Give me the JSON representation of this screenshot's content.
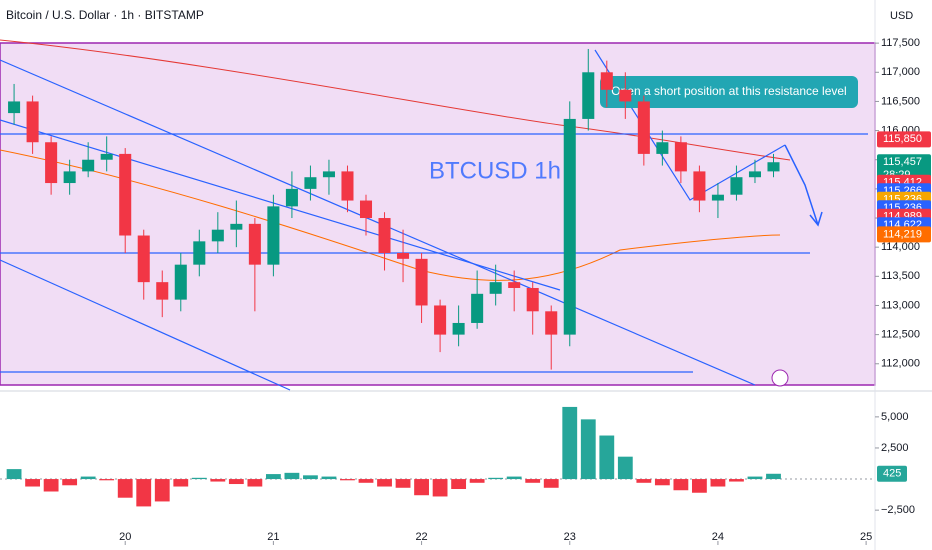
{
  "chart_data": [
    {
      "type": "candlestick",
      "title": "Bitcoin / U.S. Dollar · 1h · BITSTAMP",
      "watermark": "BTCUSD  1h",
      "annotation": "Open a short position at this resistance level",
      "currency": "USD",
      "countdown": "28:29",
      "x": [
        19.25,
        19.375,
        19.5,
        19.625,
        19.75,
        19.875,
        20,
        20.125,
        20.25,
        20.375,
        20.5,
        20.625,
        20.75,
        20.875,
        21,
        21.125,
        21.25,
        21.375,
        21.5,
        21.625,
        21.75,
        21.875,
        22,
        22.125,
        22.25,
        22.375,
        22.5,
        22.625,
        22.75,
        22.875,
        23,
        23.125,
        23.25,
        23.375,
        23.5,
        23.625,
        23.75,
        23.875,
        24,
        24.125,
        24.25,
        24.375
      ],
      "open": [
        116300,
        116500,
        115800,
        115100,
        115300,
        115500,
        115600,
        114200,
        113400,
        113100,
        113700,
        114100,
        114300,
        114400,
        113700,
        114700,
        115000,
        115200,
        115300,
        114800,
        114500,
        113900,
        113800,
        113000,
        112500,
        112700,
        113200,
        113400,
        113300,
        112900,
        112500,
        116200,
        117000,
        116700,
        116500,
        115600,
        115800,
        115300,
        114800,
        114900,
        115200,
        115300
      ],
      "high": [
        116800,
        116600,
        115900,
        115500,
        115800,
        115900,
        115700,
        114300,
        113600,
        113900,
        114300,
        114600,
        114800,
        114500,
        114900,
        115300,
        115400,
        115500,
        115400,
        114900,
        114600,
        114300,
        113900,
        113100,
        113000,
        113600,
        113700,
        113600,
        113400,
        113000,
        116500,
        117400,
        117200,
        117000,
        116600,
        116000,
        115900,
        115400,
        115100,
        115400,
        115500,
        115600
      ],
      "low": [
        116100,
        115600,
        114900,
        114900,
        115200,
        115300,
        113900,
        113100,
        112800,
        112900,
        113500,
        113900,
        114000,
        112900,
        113500,
        114500,
        114800,
        114900,
        114600,
        114200,
        113600,
        113400,
        112700,
        112200,
        112300,
        112600,
        113000,
        112900,
        112500,
        111900,
        112300,
        116000,
        116400,
        116200,
        115400,
        115400,
        115100,
        114600,
        114500,
        114800,
        115100,
        115200
      ],
      "close": [
        116500,
        115800,
        115100,
        115300,
        115500,
        115600,
        114200,
        113400,
        113100,
        113700,
        114100,
        114300,
        114400,
        113700,
        114700,
        115000,
        115200,
        115300,
        114800,
        114500,
        113900,
        113800,
        113000,
        112500,
        112700,
        113200,
        113400,
        113300,
        112900,
        112500,
        116200,
        117000,
        116700,
        116500,
        115600,
        115800,
        115300,
        114800,
        114900,
        115200,
        115300,
        115457
      ],
      "up_color": "#089981",
      "down_color": "#f23645",
      "xlim": [
        19.155,
        25.06
      ],
      "ylim": [
        111550,
        118240
      ],
      "yticks": [
        {
          "value": 117500,
          "label": "117,500"
        },
        {
          "value": 117000,
          "label": "117,000"
        },
        {
          "value": 116500,
          "label": "116,500"
        },
        {
          "value": 116000,
          "label": "116,000"
        },
        {
          "value": 115500,
          "label": "115,500"
        },
        {
          "value": 115000,
          "label": "115,000"
        },
        {
          "value": 114500,
          "label": "114,500"
        },
        {
          "value": 114000,
          "label": "114,000"
        },
        {
          "value": 113500,
          "label": "113,500"
        },
        {
          "value": 113000,
          "label": "113,000"
        },
        {
          "value": 112500,
          "label": "112,500"
        },
        {
          "value": 112000,
          "label": "112,000"
        }
      ],
      "price_tags": [
        {
          "value": 115850,
          "label": "115,850",
          "color": "#f23645"
        },
        {
          "value": 115457,
          "label": "115,457",
          "color": "#089981"
        },
        {
          "value": 115412,
          "label": "115,412",
          "color": "#f23645"
        },
        {
          "value": 115266,
          "label": "115,266",
          "color": "#2962ff"
        },
        {
          "value": 115236,
          "label": "115,236",
          "color": "#f7a600"
        },
        {
          "value": 115236,
          "label": "115,236",
          "color": "#2962ff"
        },
        {
          "value": 114989,
          "label": "114,989",
          "color": "#f23645"
        },
        {
          "value": 114622,
          "label": "114,622",
          "color": "#2962ff"
        },
        {
          "value": 114219,
          "label": "114,219",
          "color": "#ff6d00"
        }
      ]
    },
    {
      "type": "bar",
      "x": [
        19.25,
        19.375,
        19.5,
        19.625,
        19.75,
        19.875,
        20,
        20.125,
        20.25,
        20.375,
        20.5,
        20.625,
        20.75,
        20.875,
        21,
        21.125,
        21.25,
        21.375,
        21.5,
        21.625,
        21.75,
        21.875,
        22,
        22.125,
        22.25,
        22.375,
        22.5,
        22.625,
        22.75,
        22.875,
        23,
        23.125,
        23.25,
        23.375,
        23.5,
        23.625,
        23.75,
        23.875,
        24,
        24.125,
        24.25,
        24.375
      ],
      "values": [
        800,
        -600,
        -1000,
        -500,
        200,
        -100,
        -1500,
        -2200,
        -1800,
        -600,
        100,
        -200,
        -400,
        -600,
        400,
        500,
        300,
        200,
        -100,
        -300,
        -600,
        -700,
        -1300,
        -1400,
        -800,
        -300,
        100,
        200,
        -300,
        -700,
        5800,
        4800,
        3500,
        1800,
        -300,
        -500,
        -900,
        -1100,
        -600,
        -200,
        200,
        425
      ],
      "up_color": "#26a69a",
      "down_color": "#f23645",
      "xlim": [
        19.155,
        25.06
      ],
      "xticks": [
        {
          "value": 20,
          "label": "20"
        },
        {
          "value": 21,
          "label": "21"
        },
        {
          "value": 22,
          "label": "22"
        },
        {
          "value": 23,
          "label": "23"
        },
        {
          "value": 24,
          "label": "24"
        },
        {
          "value": 25,
          "label": "25"
        }
      ],
      "ylim": [
        -4900,
        7000
      ],
      "yticks": [
        {
          "value": 5000,
          "label": "5,000"
        },
        {
          "value": 2500,
          "label": "2,500"
        },
        {
          "value": -2500,
          "label": "−2,500"
        }
      ]
    }
  ]
}
